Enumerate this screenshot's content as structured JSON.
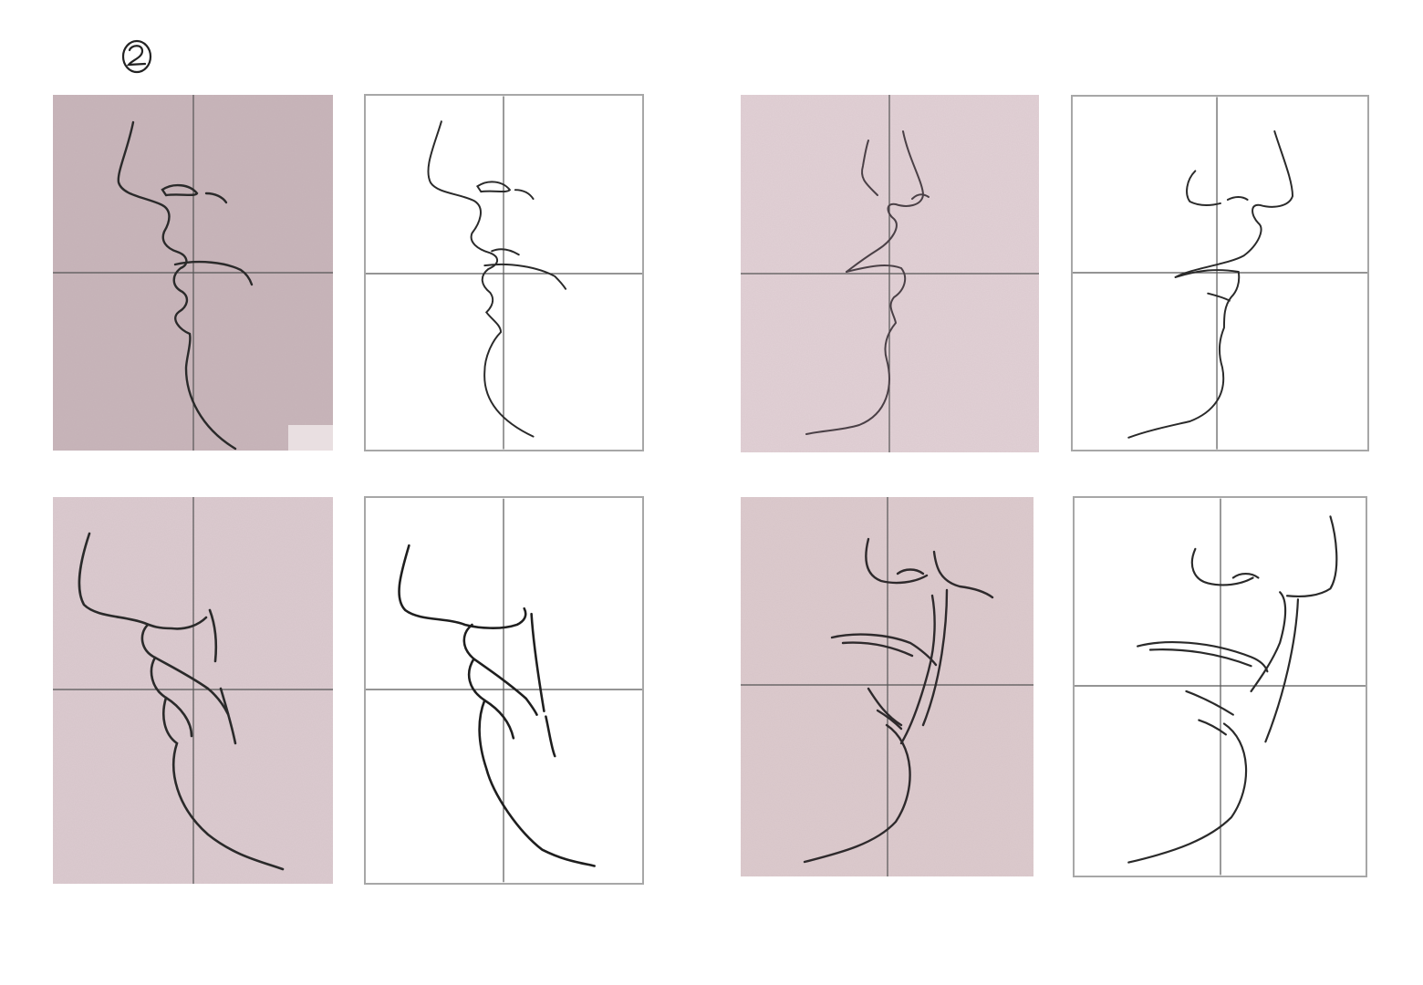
{
  "page": {
    "number_label": "2"
  },
  "colors": {
    "paper": "#ffffff",
    "photo_paper": "#e0cfd3",
    "photo_paper_dark": "#c9b6bb",
    "grid_line": "#555555",
    "panel_border": "#a7a7a7",
    "pencil": "#2a2a2a"
  },
  "panels": [
    {
      "id": "panel-1-photo",
      "kind": "reference-photo"
    },
    {
      "id": "panel-1-drawing",
      "kind": "traced-drawing"
    },
    {
      "id": "panel-2-photo",
      "kind": "reference-photo"
    },
    {
      "id": "panel-2-drawing",
      "kind": "traced-drawing"
    },
    {
      "id": "panel-3-photo",
      "kind": "reference-photo"
    },
    {
      "id": "panel-3-drawing",
      "kind": "traced-drawing"
    },
    {
      "id": "panel-4-photo",
      "kind": "reference-photo"
    },
    {
      "id": "panel-4-drawing",
      "kind": "traced-drawing"
    }
  ]
}
